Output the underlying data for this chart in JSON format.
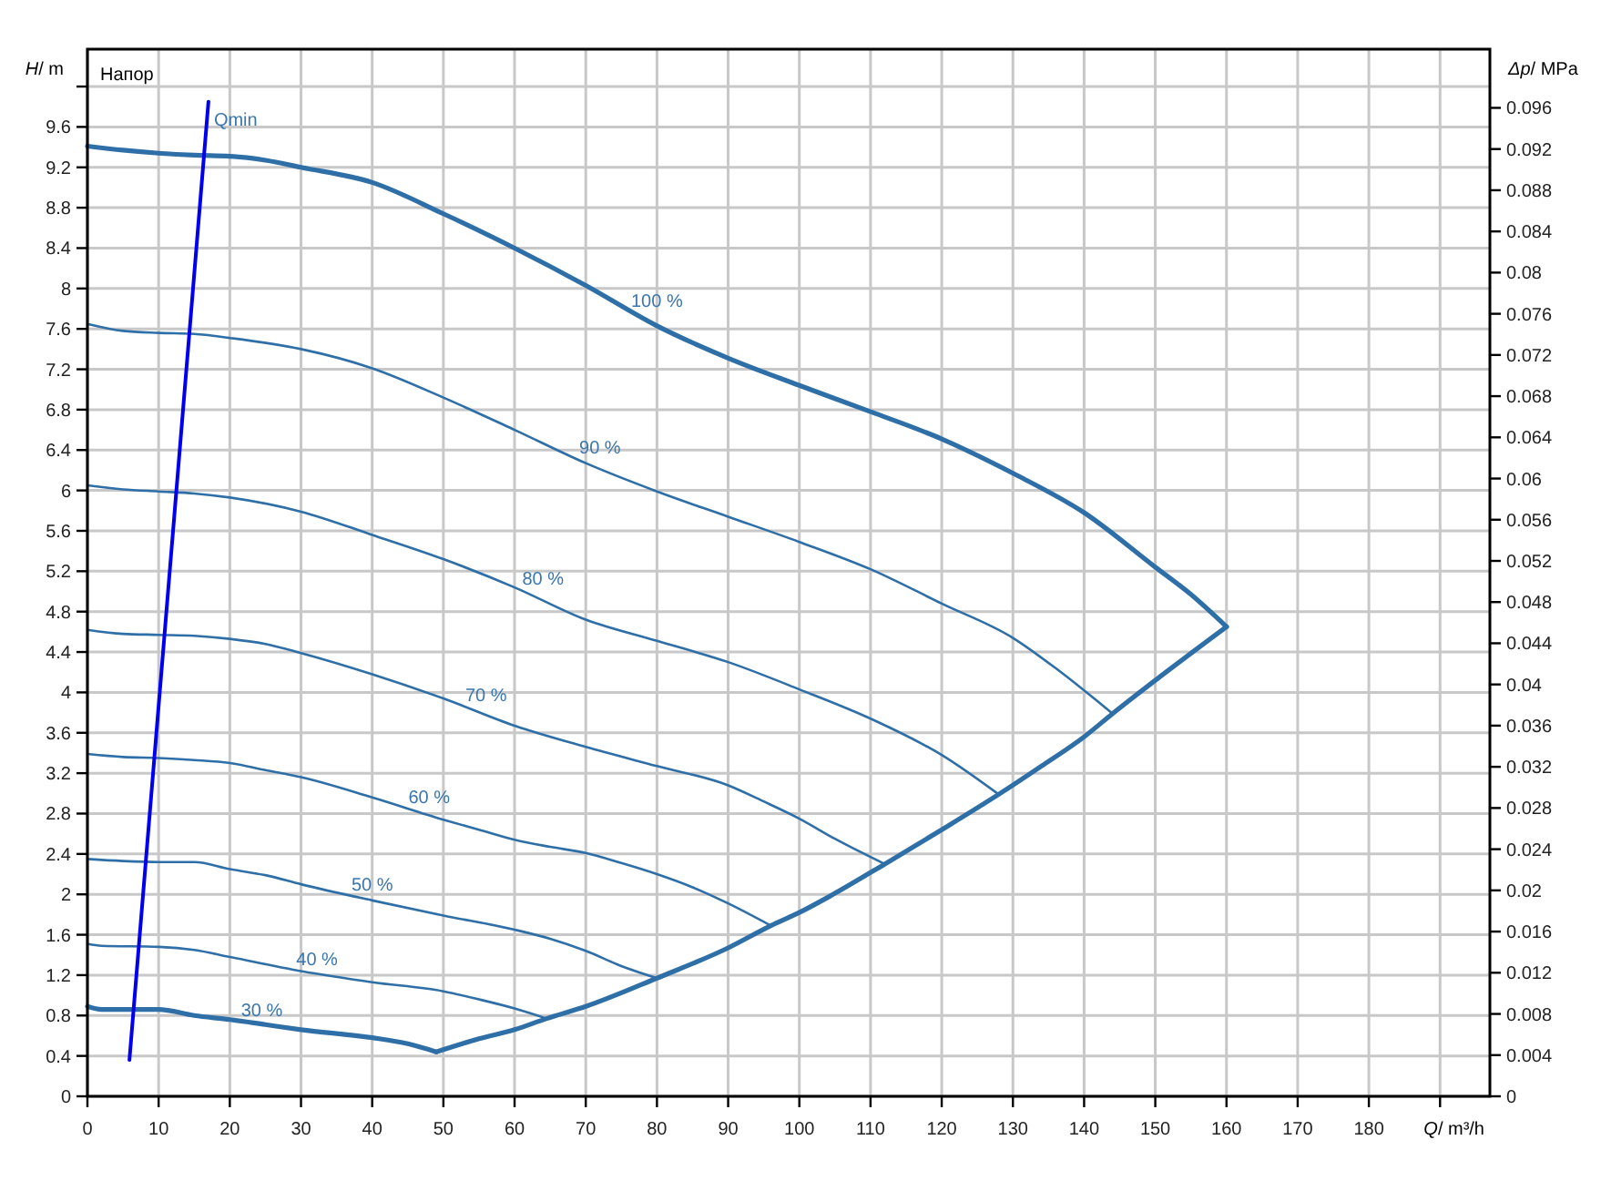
{
  "chart_data": {
    "type": "line",
    "title": "Напор",
    "xlabel": "Q/ m³/h",
    "ylabel": "H/ m",
    "y2label": "Δp/ MPa",
    "xlim": [
      0,
      197
    ],
    "xticks": [
      0,
      10,
      20,
      30,
      40,
      50,
      60,
      70,
      80,
      90,
      100,
      110,
      120,
      130,
      140,
      150,
      160,
      170,
      180,
      {
        "value": 190,
        "label": null
      }
    ],
    "ylim": [
      0,
      10.37
    ],
    "yticks": [
      0,
      0.4,
      0.8,
      1.2,
      1.6,
      2,
      2.4,
      2.8,
      3.2,
      3.6,
      4,
      4.4,
      4.8,
      5.2,
      5.6,
      6,
      6.4,
      6.8,
      7.2,
      7.6,
      8,
      8.4,
      8.8,
      9.2,
      9.6,
      {
        "value": 10,
        "label": null
      }
    ],
    "y2lim": [
      0,
      0.1017
    ],
    "y2ticks": [
      0,
      0.004,
      0.008,
      0.012,
      0.016,
      0.02,
      0.024,
      0.028,
      0.032,
      0.036,
      0.04,
      0.044,
      0.048,
      0.052,
      0.056,
      0.06,
      0.064,
      0.068,
      0.072,
      0.076,
      0.08,
      0.084,
      0.088,
      0.092,
      0.096
    ],
    "grid": true,
    "series": [
      {
        "name": "100 %",
        "color": "#2f6fa7",
        "x": [
          0,
          5,
          10,
          15,
          20,
          25,
          30,
          40,
          50,
          60,
          70,
          80,
          90,
          100,
          110,
          120,
          130,
          140,
          150,
          155,
          160
        ],
        "values": [
          9.41,
          9.37,
          9.34,
          9.32,
          9.31,
          9.27,
          9.2,
          9.05,
          8.74,
          8.4,
          8.03,
          7.63,
          7.31,
          7.04,
          6.78,
          6.51,
          6.17,
          5.78,
          5.24,
          4.97,
          4.65
        ]
      },
      {
        "name": "90 %",
        "color": "#2f6fa7",
        "x": [
          0,
          5,
          10,
          15,
          20,
          30,
          40,
          50,
          60,
          70,
          80,
          90,
          100,
          110,
          120,
          130,
          136,
          140,
          144
        ],
        "values": [
          7.65,
          7.58,
          7.56,
          7.55,
          7.51,
          7.4,
          7.21,
          6.92,
          6.6,
          6.27,
          5.99,
          5.74,
          5.49,
          5.22,
          4.88,
          4.54,
          4.24,
          4.02,
          3.79
        ]
      },
      {
        "name": "80 %",
        "color": "#2f6fa7",
        "x": [
          0,
          5,
          10,
          15,
          20,
          30,
          40,
          50,
          60,
          70,
          80,
          90,
          100,
          110,
          120,
          128
        ],
        "values": [
          6.05,
          6.01,
          5.99,
          5.97,
          5.93,
          5.79,
          5.56,
          5.32,
          5.04,
          4.72,
          4.51,
          4.3,
          4.03,
          3.74,
          3.38,
          2.99
        ]
      },
      {
        "name": "70 %",
        "color": "#2f6fa7",
        "x": [
          0,
          5,
          10,
          15,
          20,
          25,
          30,
          40,
          50,
          60,
          70,
          80,
          90,
          95,
          100,
          105,
          112
        ],
        "values": [
          4.62,
          4.58,
          4.57,
          4.56,
          4.53,
          4.48,
          4.39,
          4.18,
          3.94,
          3.67,
          3.46,
          3.27,
          3.08,
          2.92,
          2.75,
          2.55,
          2.3
        ]
      },
      {
        "name": "60 %",
        "color": "#2f6fa7",
        "x": [
          0,
          5,
          10,
          15,
          20,
          25,
          30,
          40,
          50,
          55,
          60,
          65,
          70,
          75,
          80,
          85,
          90,
          96
        ],
        "values": [
          3.39,
          3.36,
          3.35,
          3.33,
          3.3,
          3.23,
          3.16,
          2.96,
          2.74,
          2.64,
          2.54,
          2.47,
          2.41,
          2.31,
          2.2,
          2.07,
          1.91,
          1.69
        ]
      },
      {
        "name": "50 %",
        "color": "#2f6fa7",
        "x": [
          0,
          5,
          10,
          15,
          20,
          25,
          30,
          40,
          50,
          60,
          65,
          70,
          75,
          80
        ],
        "values": [
          2.35,
          2.33,
          2.32,
          2.32,
          2.25,
          2.19,
          2.1,
          1.94,
          1.79,
          1.65,
          1.56,
          1.44,
          1.29,
          1.17
        ]
      },
      {
        "name": "40 %",
        "color": "#2f6fa7",
        "x": [
          0,
          2,
          10,
          15,
          20,
          30,
          40,
          50,
          55,
          60,
          64.5
        ],
        "values": [
          1.51,
          1.49,
          1.48,
          1.45,
          1.38,
          1.24,
          1.13,
          1.04,
          0.96,
          0.87,
          0.77
        ]
      },
      {
        "name": "30 %",
        "color": "#2f6fa7",
        "x": [
          0,
          2,
          10,
          15,
          20,
          25,
          30,
          40,
          45,
          49
        ],
        "values": [
          0.89,
          0.86,
          0.86,
          0.8,
          0.76,
          0.71,
          0.66,
          0.58,
          0.52,
          0.44
        ]
      },
      {
        "color": "#2f6fa7",
        "x": [
          49,
          55,
          60,
          64.5,
          70,
          80,
          90,
          96,
          100,
          104.5,
          112,
          120,
          128,
          134,
          140,
          144,
          150,
          160
        ],
        "values": [
          0.44,
          0.57,
          0.66,
          0.77,
          0.89,
          1.17,
          1.47,
          1.69,
          1.82,
          1.99,
          2.3,
          2.64,
          2.99,
          3.27,
          3.56,
          3.79,
          4.12,
          4.65
        ]
      },
      {
        "name": "Qmin",
        "color": "#0000ee",
        "x": [
          5.9,
          17
        ],
        "values": [
          0.36,
          9.85
        ]
      }
    ]
  }
}
